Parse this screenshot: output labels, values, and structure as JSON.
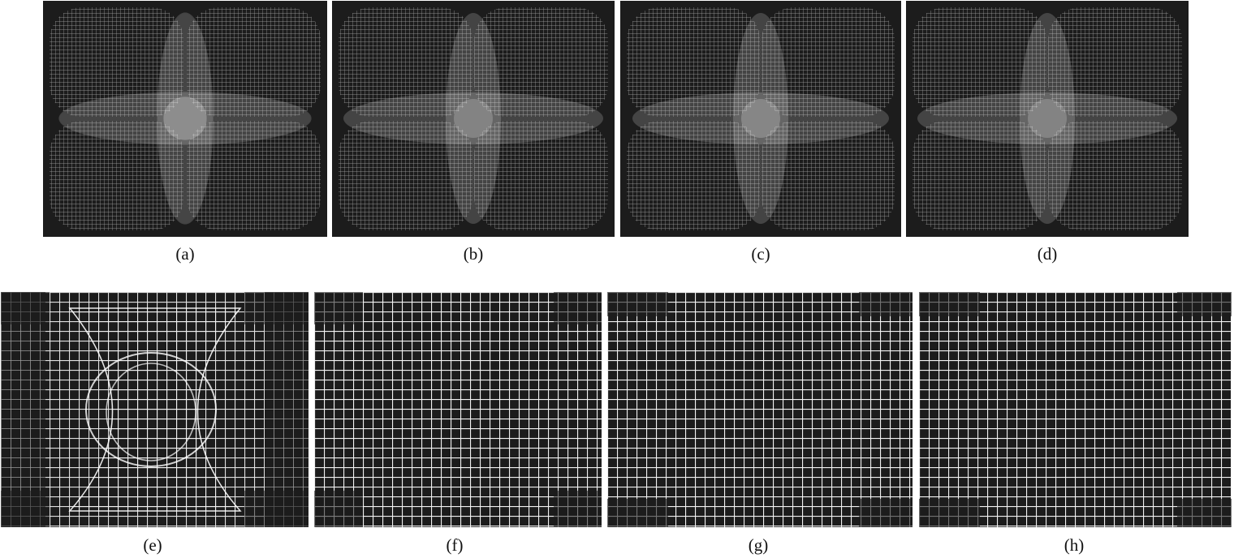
{
  "figure": {
    "top_row": [
      {
        "id": "a",
        "caption": "(a)"
      },
      {
        "id": "b",
        "caption": "(b)"
      },
      {
        "id": "c",
        "caption": "(c)"
      },
      {
        "id": "d",
        "caption": "(d)"
      }
    ],
    "bottom_row": [
      {
        "id": "e",
        "caption": "(e)"
      },
      {
        "id": "f",
        "caption": "(f)"
      },
      {
        "id": "g",
        "caption": "(g)"
      },
      {
        "id": "h",
        "caption": "(h)"
      }
    ]
  },
  "colors": {
    "background": "#1c1c1c",
    "grid_line": "#e8e8e8",
    "overlap_fill": "#ffffff"
  }
}
